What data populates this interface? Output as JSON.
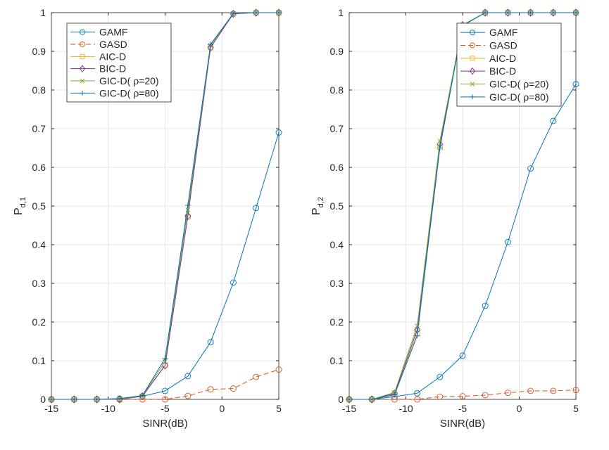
{
  "chart_data": [
    {
      "type": "line",
      "xlabel": "SINR(dB)",
      "ylabel": {
        "main": "P",
        "sub": "d,1"
      },
      "xlim": [
        -15,
        5
      ],
      "ylim": [
        0,
        1
      ],
      "xticks": [
        -15,
        -10,
        -5,
        0,
        5
      ],
      "yticks": [
        0,
        0.1,
        0.2,
        0.3,
        0.4,
        0.5,
        0.6,
        0.7,
        0.8,
        0.9,
        1
      ],
      "grid": true,
      "legend_position": "top-left",
      "x": [
        -15,
        -13,
        -11,
        -9,
        -7,
        -5,
        -3,
        -1,
        1,
        3,
        5
      ],
      "series": [
        {
          "name": "GAMF",
          "color": "#0072BD",
          "marker": "circle",
          "dash": false,
          "values": [
            0,
            0,
            0,
            0.002,
            0.008,
            0.022,
            0.06,
            0.148,
            0.302,
            0.495,
            0.69
          ]
        },
        {
          "name": "GASD",
          "color": "#D95319",
          "marker": "circle",
          "dash": true,
          "values": [
            0,
            0,
            0,
            0,
            0,
            0,
            0.009,
            0.026,
            0.028,
            0.058,
            0.077
          ]
        },
        {
          "name": "AIC-D",
          "color": "#EDB120",
          "marker": "square",
          "dash": false,
          "values": [
            0,
            0,
            0,
            0,
            0.008,
            0.088,
            0.472,
            0.91,
            0.997,
            1,
            1
          ]
        },
        {
          "name": "BIC-D",
          "color": "#7E2F8E",
          "marker": "diamond",
          "dash": false,
          "values": [
            0,
            0,
            0,
            0,
            0.008,
            0.088,
            0.474,
            0.91,
            0.997,
            1,
            1
          ]
        },
        {
          "name": "GIC-D( ρ=20)",
          "color": "#77AC30",
          "marker": "x",
          "dash": false,
          "values": [
            0,
            0,
            0,
            0.001,
            0.009,
            0.098,
            0.49,
            0.915,
            0.998,
            1,
            1
          ]
        },
        {
          "name": "GIC-D( ρ=80)",
          "color": "#0072BD",
          "marker": "plus",
          "dash": false,
          "values": [
            0,
            0,
            0,
            0.002,
            0.01,
            0.106,
            0.502,
            0.918,
            0.998,
            1,
            1
          ]
        }
      ]
    },
    {
      "type": "line",
      "xlabel": "SINR(dB)",
      "ylabel": {
        "main": "P",
        "sub": "d,2"
      },
      "xlim": [
        -15,
        5
      ],
      "ylim": [
        0,
        1
      ],
      "xticks": [
        -15,
        -10,
        -5,
        0,
        5
      ],
      "yticks": [
        0,
        0.1,
        0.2,
        0.3,
        0.4,
        0.5,
        0.6,
        0.7,
        0.8,
        0.9,
        1
      ],
      "grid": true,
      "legend_position": "top-right",
      "x": [
        -15,
        -13,
        -11,
        -9,
        -7,
        -5,
        -3,
        -1,
        1,
        3,
        5
      ],
      "series": [
        {
          "name": "GAMF",
          "color": "#0072BD",
          "marker": "circle",
          "dash": false,
          "values": [
            0,
            0,
            0.007,
            0.016,
            0.058,
            0.113,
            0.242,
            0.407,
            0.597,
            0.72,
            0.815
          ]
        },
        {
          "name": "GASD",
          "color": "#D95319",
          "marker": "circle",
          "dash": true,
          "values": [
            0,
            0,
            0,
            0,
            0.007,
            0.008,
            0.011,
            0.017,
            0.022,
            0.022,
            0.024
          ]
        },
        {
          "name": "AIC-D",
          "color": "#EDB120",
          "marker": "square",
          "dash": false,
          "values": [
            0,
            0,
            0.015,
            0.17,
            0.652,
            0.966,
            1,
            1,
            1,
            1,
            1
          ]
        },
        {
          "name": "BIC-D",
          "color": "#7E2F8E",
          "marker": "diamond",
          "dash": false,
          "values": [
            0,
            0,
            0.015,
            0.18,
            0.66,
            0.968,
            1,
            1,
            1,
            1,
            1
          ]
        },
        {
          "name": "GIC-D( ρ=20)",
          "color": "#77AC30",
          "marker": "x",
          "dash": false,
          "values": [
            0,
            0,
            0.018,
            0.19,
            0.668,
            0.968,
            1,
            1,
            1,
            1,
            1
          ]
        },
        {
          "name": "GIC-D( ρ=80)",
          "color": "#0072BD",
          "marker": "plus",
          "dash": false,
          "values": [
            0,
            0,
            0.012,
            0.165,
            0.65,
            0.966,
            1,
            1,
            1,
            1,
            1
          ]
        }
      ]
    }
  ]
}
